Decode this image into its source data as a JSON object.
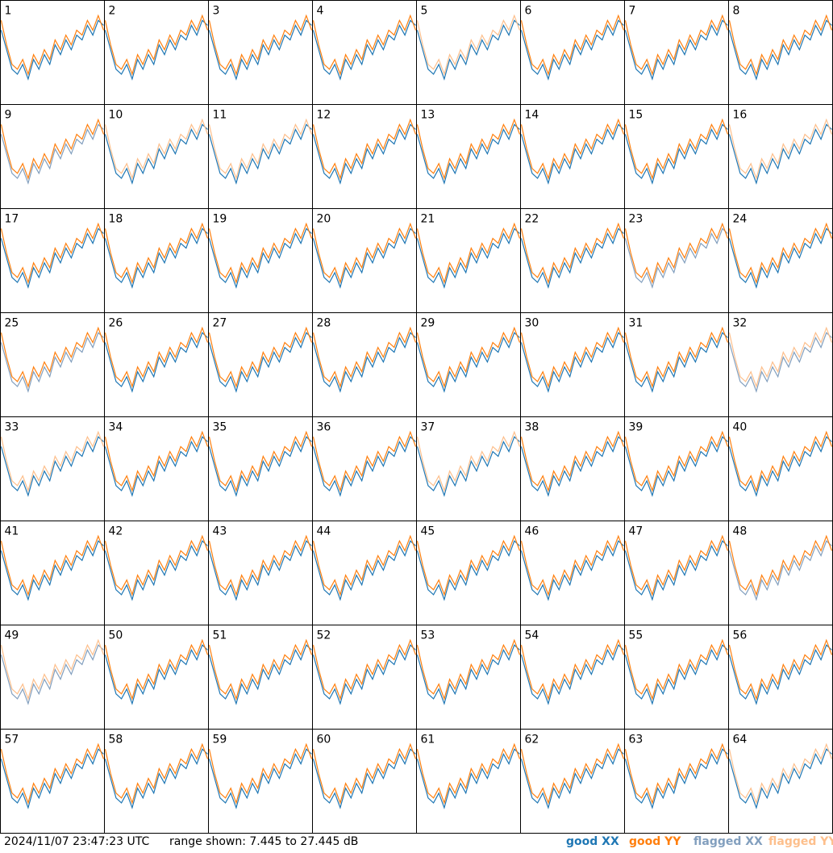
{
  "chart_data": {
    "type": "line",
    "timestamp": "2024/11/07 23:47:23 UTC",
    "range_label": "range shown: 7.445 to 27.445 dB",
    "ylim": [
      7.445,
      27.445
    ],
    "series": [
      {
        "name": "good XX",
        "color": "#1f77b4"
      },
      {
        "name": "good YY",
        "color": "#ff7f0e"
      },
      {
        "name": "flagged XX",
        "color": "#829fbe"
      },
      {
        "name": "flagged YY",
        "color": "#fdbf8c"
      }
    ],
    "profile_xx": [
      22,
      18,
      14,
      13,
      15,
      12,
      16,
      14,
      17,
      15,
      19,
      17,
      20,
      18,
      21,
      20,
      23,
      21,
      24,
      23
    ],
    "profile_yy": [
      24,
      19,
      15,
      14,
      16,
      13,
      17,
      15,
      18,
      16,
      20,
      18,
      21,
      19,
      22,
      21,
      24,
      22,
      25,
      22
    ],
    "panels": [
      {
        "label": 1,
        "flagged_xx": false,
        "flagged_yy": false
      },
      {
        "label": 2,
        "flagged_xx": false,
        "flagged_yy": false
      },
      {
        "label": 3,
        "flagged_xx": false,
        "flagged_yy": false
      },
      {
        "label": 4,
        "flagged_xx": false,
        "flagged_yy": false
      },
      {
        "label": 5,
        "flagged_xx": false,
        "flagged_yy": true
      },
      {
        "label": 6,
        "flagged_xx": false,
        "flagged_yy": false
      },
      {
        "label": 7,
        "flagged_xx": false,
        "flagged_yy": false
      },
      {
        "label": 8,
        "flagged_xx": false,
        "flagged_yy": false
      },
      {
        "label": 9,
        "flagged_xx": true,
        "flagged_yy": false
      },
      {
        "label": 10,
        "flagged_xx": false,
        "flagged_yy": true
      },
      {
        "label": 11,
        "flagged_xx": false,
        "flagged_yy": true
      },
      {
        "label": 12,
        "flagged_xx": false,
        "flagged_yy": false
      },
      {
        "label": 13,
        "flagged_xx": false,
        "flagged_yy": false
      },
      {
        "label": 14,
        "flagged_xx": false,
        "flagged_yy": false
      },
      {
        "label": 15,
        "flagged_xx": false,
        "flagged_yy": false
      },
      {
        "label": 16,
        "flagged_xx": false,
        "flagged_yy": true
      },
      {
        "label": 17,
        "flagged_xx": false,
        "flagged_yy": false
      },
      {
        "label": 18,
        "flagged_xx": false,
        "flagged_yy": false
      },
      {
        "label": 19,
        "flagged_xx": false,
        "flagged_yy": false
      },
      {
        "label": 20,
        "flagged_xx": false,
        "flagged_yy": false
      },
      {
        "label": 21,
        "flagged_xx": false,
        "flagged_yy": false
      },
      {
        "label": 22,
        "flagged_xx": false,
        "flagged_yy": false
      },
      {
        "label": 23,
        "flagged_xx": true,
        "flagged_yy": false
      },
      {
        "label": 24,
        "flagged_xx": false,
        "flagged_yy": false
      },
      {
        "label": 25,
        "flagged_xx": true,
        "flagged_yy": false
      },
      {
        "label": 26,
        "flagged_xx": false,
        "flagged_yy": false
      },
      {
        "label": 27,
        "flagged_xx": false,
        "flagged_yy": false
      },
      {
        "label": 28,
        "flagged_xx": false,
        "flagged_yy": false
      },
      {
        "label": 29,
        "flagged_xx": false,
        "flagged_yy": false
      },
      {
        "label": 30,
        "flagged_xx": false,
        "flagged_yy": false
      },
      {
        "label": 31,
        "flagged_xx": false,
        "flagged_yy": false
      },
      {
        "label": 32,
        "flagged_xx": true,
        "flagged_yy": true
      },
      {
        "label": 33,
        "flagged_xx": false,
        "flagged_yy": true
      },
      {
        "label": 34,
        "flagged_xx": false,
        "flagged_yy": false
      },
      {
        "label": 35,
        "flagged_xx": false,
        "flagged_yy": false
      },
      {
        "label": 36,
        "flagged_xx": false,
        "flagged_yy": false
      },
      {
        "label": 37,
        "flagged_xx": false,
        "flagged_yy": true
      },
      {
        "label": 38,
        "flagged_xx": false,
        "flagged_yy": false
      },
      {
        "label": 39,
        "flagged_xx": false,
        "flagged_yy": false
      },
      {
        "label": 40,
        "flagged_xx": false,
        "flagged_yy": false
      },
      {
        "label": 41,
        "flagged_xx": false,
        "flagged_yy": false
      },
      {
        "label": 42,
        "flagged_xx": false,
        "flagged_yy": false
      },
      {
        "label": 43,
        "flagged_xx": false,
        "flagged_yy": false
      },
      {
        "label": 44,
        "flagged_xx": false,
        "flagged_yy": false
      },
      {
        "label": 45,
        "flagged_xx": false,
        "flagged_yy": false
      },
      {
        "label": 46,
        "flagged_xx": false,
        "flagged_yy": false
      },
      {
        "label": 47,
        "flagged_xx": false,
        "flagged_yy": false
      },
      {
        "label": 48,
        "flagged_xx": true,
        "flagged_yy": false
      },
      {
        "label": 49,
        "flagged_xx": true,
        "flagged_yy": true
      },
      {
        "label": 50,
        "flagged_xx": false,
        "flagged_yy": false
      },
      {
        "label": 51,
        "flagged_xx": false,
        "flagged_yy": false
      },
      {
        "label": 52,
        "flagged_xx": false,
        "flagged_yy": false
      },
      {
        "label": 53,
        "flagged_xx": false,
        "flagged_yy": false
      },
      {
        "label": 54,
        "flagged_xx": false,
        "flagged_yy": false
      },
      {
        "label": 55,
        "flagged_xx": false,
        "flagged_yy": false
      },
      {
        "label": 56,
        "flagged_xx": false,
        "flagged_yy": false
      },
      {
        "label": 57,
        "flagged_xx": false,
        "flagged_yy": false
      },
      {
        "label": 58,
        "flagged_xx": false,
        "flagged_yy": false
      },
      {
        "label": 59,
        "flagged_xx": false,
        "flagged_yy": false
      },
      {
        "label": 60,
        "flagged_xx": false,
        "flagged_yy": false
      },
      {
        "label": 61,
        "flagged_xx": false,
        "flagged_yy": false
      },
      {
        "label": 62,
        "flagged_xx": false,
        "flagged_yy": false
      },
      {
        "label": 63,
        "flagged_xx": false,
        "flagged_yy": false
      },
      {
        "label": 64,
        "flagged_xx": false,
        "flagged_yy": true
      }
    ]
  }
}
